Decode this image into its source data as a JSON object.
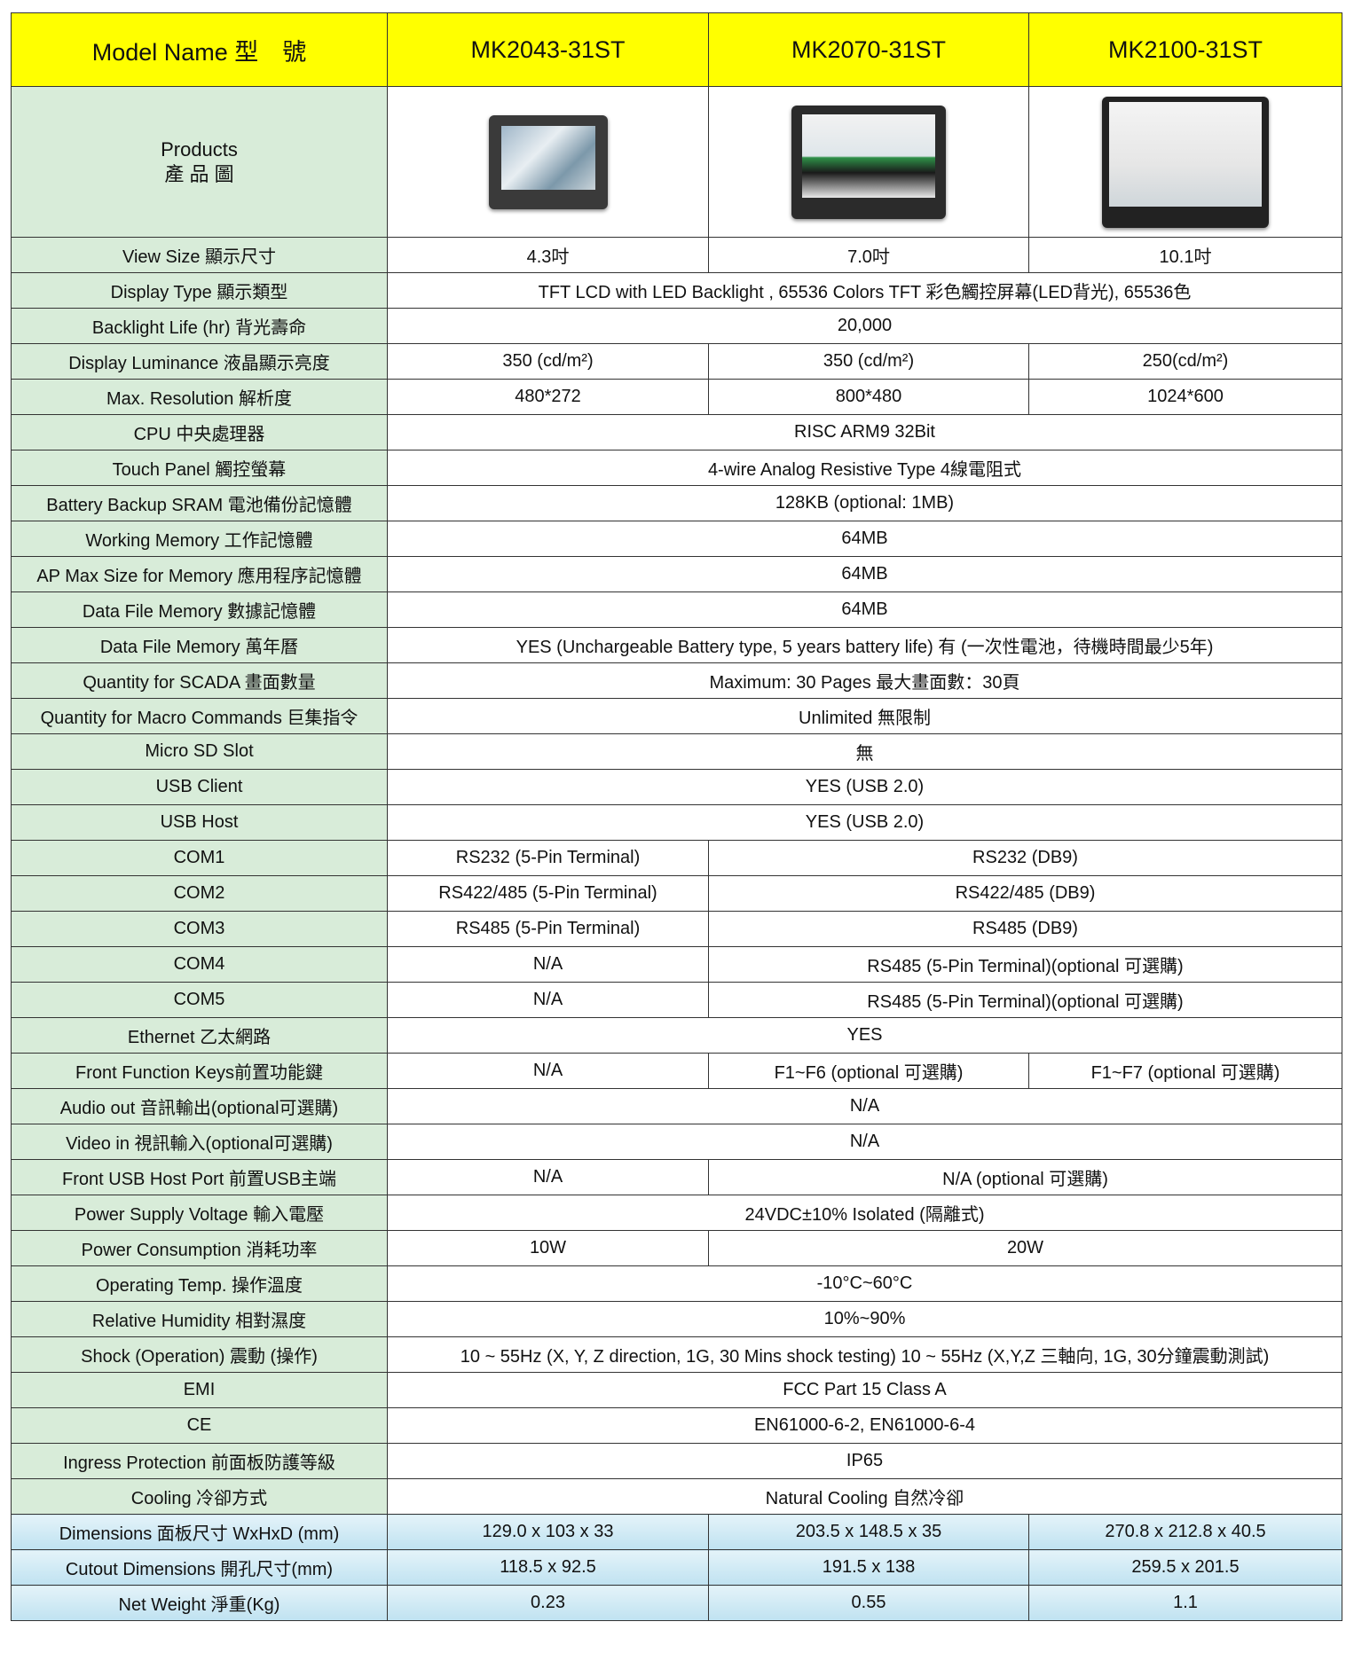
{
  "header": {
    "label": "Model Name 型　號",
    "models": [
      "MK2043-31ST",
      "MK2070-31ST",
      "MK2100-31ST"
    ]
  },
  "products": {
    "label": [
      "Products",
      "產 品 圖"
    ]
  },
  "rows": [
    {
      "label": "View Size 顯示尺寸",
      "cells": [
        "4.3吋",
        "7.0吋",
        "10.1吋"
      ]
    },
    {
      "label": "Display Type 顯示類型",
      "cells": [
        "TFT LCD with LED Backlight , 65536 Colors TFT 彩色觸控屏幕(LED背光), 65536色"
      ]
    },
    {
      "label": "Backlight Life (hr) 背光壽命",
      "cells": [
        "20,000"
      ]
    },
    {
      "label": "Display Luminance  液晶顯示亮度",
      "cells": [
        "350  (cd/m²)",
        "350  (cd/m²)",
        "250(cd/m²)"
      ]
    },
    {
      "label": "Max. Resolution  解析度",
      "cells": [
        "480*272",
        "800*480",
        "1024*600"
      ]
    },
    {
      "label": "CPU  中央處理器",
      "cells": [
        "RISC ARM9 32Bit"
      ]
    },
    {
      "label": "Touch Panel  觸控螢幕",
      "cells": [
        "4-wire Analog Resistive Type 4線電阻式"
      ]
    },
    {
      "label": "Battery Backup SRAM 電池備份記憶體",
      "cells": [
        "128KB (optional: 1MB)"
      ]
    },
    {
      "label": "Working Memory 工作記憶體",
      "cells": [
        "64MB"
      ]
    },
    {
      "label": "AP Max Size for Memory 應用程序記憶體",
      "cells": [
        "64MB"
      ]
    },
    {
      "label": "Data File Memory 數據記憶體",
      "cells": [
        "64MB"
      ]
    },
    {
      "label": "Data File Memory  萬年曆",
      "cells": [
        "YES (Unchargeable Battery type, 5 years battery life) 有 (一次性電池，待機時間最少5年)"
      ]
    },
    {
      "label": "Quantity for SCADA 畫面數量",
      "cells": [
        "Maximum: 30 Pages 最大畫面數：30頁"
      ]
    },
    {
      "label": "Quantity for Macro Commands 巨集指令",
      "cells": [
        "Unlimited 無限制"
      ]
    },
    {
      "label": "Micro SD Slot",
      "cells": [
        "無"
      ]
    },
    {
      "label": "USB Client",
      "cells": [
        "YES (USB 2.0)"
      ]
    },
    {
      "label": "USB Host",
      "cells": [
        "YES (USB 2.0)"
      ]
    },
    {
      "label": "COM1",
      "cells": [
        "RS232 (5-Pin Terminal)",
        "RS232 (DB9)"
      ]
    },
    {
      "label": "COM2",
      "cells": [
        "RS422/485 (5-Pin Terminal)",
        "RS422/485 (DB9)"
      ]
    },
    {
      "label": "COM3",
      "cells": [
        "RS485 (5-Pin Terminal)",
        "RS485 (DB9)"
      ]
    },
    {
      "label": "COM4",
      "cells": [
        "N/A",
        "RS485 (5-Pin Terminal)(optional 可選購)"
      ]
    },
    {
      "label": "COM5",
      "cells": [
        "N/A",
        "RS485 (5-Pin Terminal)(optional 可選購)"
      ]
    },
    {
      "label": "Ethernet 乙太網路",
      "cells": [
        "YES"
      ]
    },
    {
      "label": "Front Function Keys前置功能鍵",
      "cells": [
        "N/A",
        "F1~F6 (optional 可選購)",
        "F1~F7 (optional 可選購)"
      ]
    },
    {
      "label": "Audio out 音訊輸出(optional可選購)",
      "cells": [
        "N/A"
      ]
    },
    {
      "label": "Video in 視訊輸入(optional可選購)",
      "cells": [
        "N/A"
      ]
    },
    {
      "label": "Front USB Host Port 前置USB主端",
      "cells": [
        "N/A",
        "N/A (optional 可選購)"
      ]
    },
    {
      "label": "Power Supply Voltage  輸入電壓",
      "cells": [
        "24VDC±10% Isolated (隔離式)"
      ]
    },
    {
      "label": "Power Consumption  消耗功率",
      "cells": [
        "10W",
        "20W"
      ]
    },
    {
      "label": "Operating Temp. 操作溫度",
      "cells": [
        "-10°C~60°C"
      ]
    },
    {
      "label": "Relative Humidity  相對濕度",
      "cells": [
        "10%~90%"
      ]
    },
    {
      "label": "Shock (Operation) 震動 (操作)",
      "cells": [
        "10 ~ 55Hz (X, Y, Z direction, 1G, 30 Mins shock testing) 10 ~ 55Hz (X,Y,Z 三軸向, 1G, 30分鐘震動測試)"
      ]
    },
    {
      "label": "EMI",
      "cells": [
        "FCC Part 15 Class A"
      ]
    },
    {
      "label": "CE",
      "cells": [
        "EN61000-6-2, EN61000-6-4"
      ]
    },
    {
      "label": "Ingress Protection  前面板防護等級",
      "cells": [
        "IP65"
      ]
    },
    {
      "label": "Cooling  冷卻方式",
      "cells": [
        "Natural Cooling 自然冷卻"
      ]
    },
    {
      "label": "Dimensions 面板尺寸 WxHxD (mm)",
      "cells": [
        "129.0 x 103 x 33",
        "203.5 x 148.5 x 35",
        "270.8 x 212.8 x 40.5"
      ]
    },
    {
      "label": "Cutout Dimensions 開孔尺寸(mm)",
      "cells": [
        "118.5 x 92.5",
        "191.5 x 138",
        "259.5 x 201.5"
      ]
    },
    {
      "label": "Net Weight 淨重(Kg)",
      "cells": [
        "0.23",
        "0.55",
        "1.1"
      ]
    }
  ]
}
